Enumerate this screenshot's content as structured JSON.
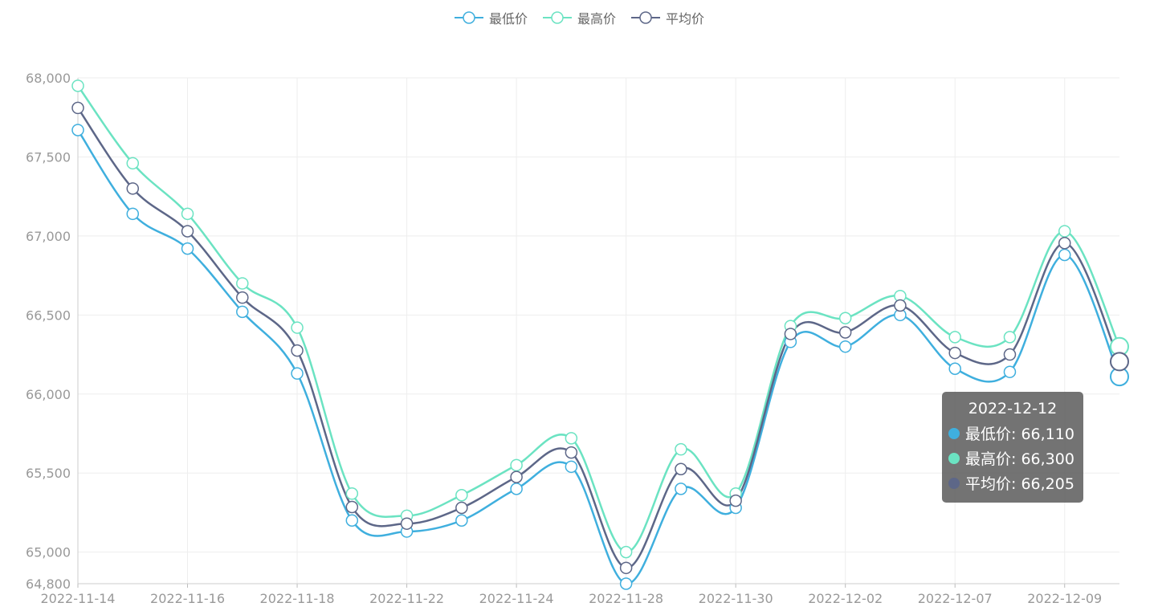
{
  "legend": [
    {
      "name": "最低价",
      "color": "#3fafde"
    },
    {
      "name": "最高价",
      "color": "#6be3c2"
    },
    {
      "name": "平均价",
      "color": "#5d6788"
    }
  ],
  "tooltip": {
    "date": "2022-12-12",
    "rows": [
      {
        "label": "最低价: 66,110",
        "color": "#3fafde"
      },
      {
        "label": "最高价: 66,300",
        "color": "#6be3c2"
      },
      {
        "label": "平均价: 66,205",
        "color": "#5d6788"
      }
    ]
  },
  "chart_data": {
    "type": "line",
    "smooth": true,
    "dates": [
      "2022-11-14",
      "2022-11-15",
      "2022-11-16",
      "2022-11-17",
      "2022-11-18",
      "2022-11-21",
      "2022-11-22",
      "2022-11-23",
      "2022-11-24",
      "2022-11-25",
      "2022-11-28",
      "2022-11-29",
      "2022-11-30",
      "2022-12-01",
      "2022-12-02",
      "2022-12-05",
      "2022-12-07",
      "2022-12-08",
      "2022-12-09",
      "2022-12-12"
    ],
    "xticks": [
      "2022-11-14",
      "2022-11-16",
      "2022-11-18",
      "2022-11-22",
      "2022-11-24",
      "2022-11-28",
      "2022-11-30",
      "2022-12-02",
      "2022-12-07",
      "2022-12-09"
    ],
    "yticks": [
      64800,
      65000,
      65500,
      66000,
      66500,
      67000,
      67500,
      68000
    ],
    "ylim": [
      64800,
      68000
    ],
    "grid": true,
    "legend_position": "top-center",
    "series": [
      {
        "name": "最低价",
        "color": "#3fafde",
        "values": [
          67670,
          67140,
          66920,
          66520,
          66130,
          65200,
          65130,
          65200,
          65400,
          65540,
          64800,
          65400,
          65280,
          66330,
          66300,
          66500,
          66160,
          66140,
          66880,
          66110
        ]
      },
      {
        "name": "最高价",
        "color": "#6be3c2",
        "values": [
          67950,
          67460,
          67140,
          66700,
          66420,
          65370,
          65230,
          65360,
          65550,
          65720,
          65000,
          65650,
          65370,
          66430,
          66480,
          66620,
          66360,
          66360,
          67030,
          66300
        ]
      },
      {
        "name": "平均价",
        "color": "#5d6788",
        "values": [
          67810,
          67300,
          67030,
          66610,
          66275,
          65285,
          65180,
          65280,
          65475,
          65630,
          64900,
          65525,
          65325,
          66380,
          66390,
          66560,
          66260,
          66250,
          66955,
          66205
        ]
      }
    ]
  }
}
